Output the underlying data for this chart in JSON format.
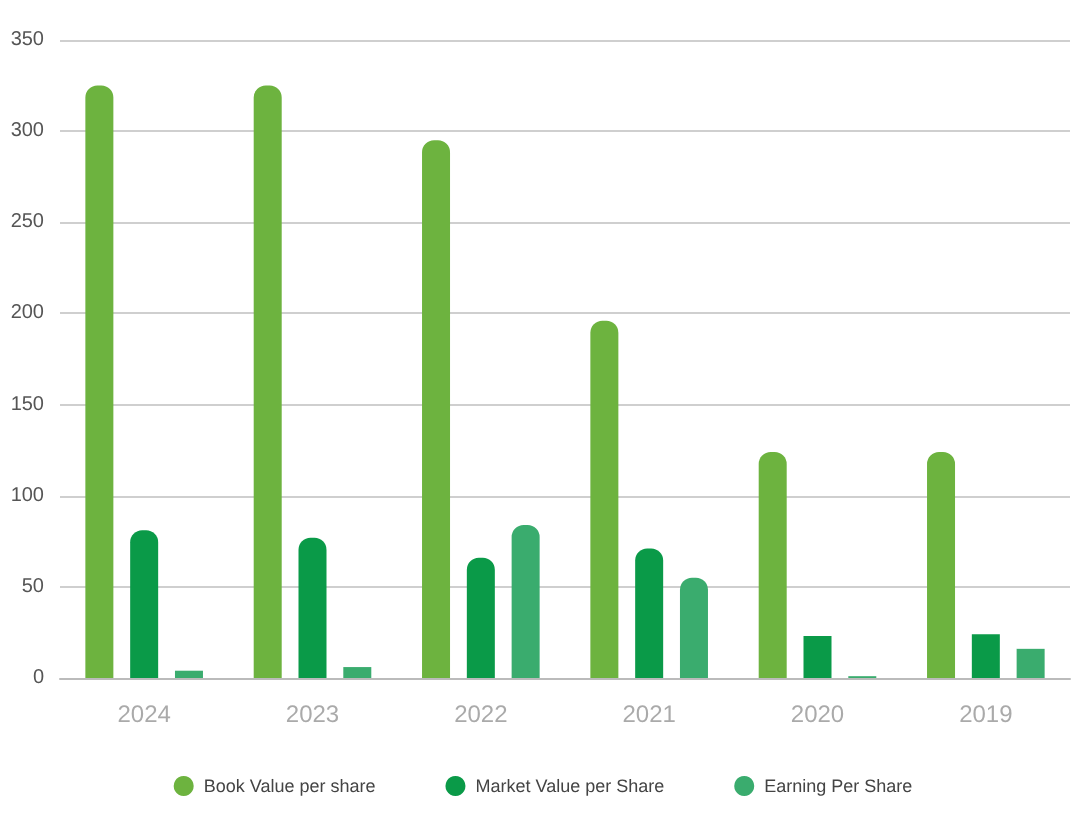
{
  "chart_data": {
    "type": "bar",
    "categories": [
      "2024",
      "2023",
      "2022",
      "2021",
      "2020",
      "2019"
    ],
    "series": [
      {
        "name": "Book Value per share",
        "color": "#6db33f",
        "values": [
          325,
          325,
          295,
          196,
          124,
          124
        ]
      },
      {
        "name": "Market Value per Share",
        "color": "#0a9a48",
        "values": [
          81,
          77,
          66,
          71,
          23,
          24
        ]
      },
      {
        "name": "Earning Per Share",
        "color": "#3aac6e",
        "values": [
          4,
          6,
          84,
          55,
          1,
          16
        ]
      }
    ],
    "ylim": [
      0,
      350
    ],
    "yticks": [
      0,
      50,
      100,
      150,
      200,
      250,
      300,
      350
    ],
    "grid": "y",
    "legend": "bottom"
  }
}
